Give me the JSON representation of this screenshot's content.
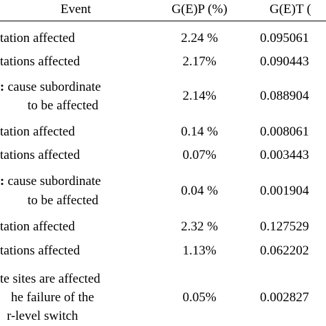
{
  "header": {
    "event": "Event",
    "gep": "G(E)P (%)",
    "get": "G(E)T ("
  },
  "rows": [
    {
      "event": [
        "tation affected"
      ],
      "gep": "2.24 %",
      "get": "0.095061"
    },
    {
      "event": [
        "tations affected"
      ],
      "gep": "2.17%",
      "get": "0.090443"
    },
    {
      "event": [
        ": cause subordinate",
        "to be affected"
      ],
      "gep": "2.14%",
      "get": "0.088904"
    },
    {
      "event": [
        "tation affected"
      ],
      "gep": "0.14 %",
      "get": "0.008061"
    },
    {
      "event": [
        "tations affected"
      ],
      "gep": "0.07%",
      "get": "0.003443"
    },
    {
      "event": [
        ": cause subordinate",
        "to be affected"
      ],
      "gep": "0.04 %",
      "get": "0.001904"
    },
    {
      "event": [
        "tation affected"
      ],
      "gep": "2.32 %",
      "get": "0.127529"
    },
    {
      "event": [
        "tations affected"
      ],
      "gep": "1.13%",
      "get": "0.062202"
    },
    {
      "event": [
        "te sites are affected",
        "he failure of the",
        "r-level switch"
      ],
      "gep": "0.05%",
      "get": "0.002827"
    }
  ]
}
